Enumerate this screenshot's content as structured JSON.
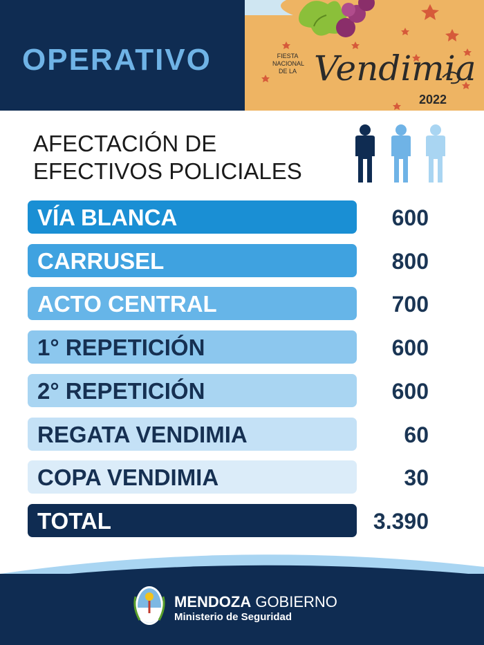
{
  "header": {
    "title": "OPERATIVO",
    "logo": {
      "fiesta_lines": [
        "FIESTA",
        "NACIONAL",
        "DE LA"
      ],
      "word": "Vendimia",
      "year": "2022"
    }
  },
  "subtitle": {
    "line1": "AFECTACIÓN DE",
    "line2": "EFECTIVOS POLICIALES"
  },
  "people_icons": [
    "person-icon-dark",
    "person-icon-medium",
    "person-icon-light"
  ],
  "rows": [
    {
      "label": "VÍA BLANCA",
      "value": "600",
      "bg": "#1a8fd4",
      "text_color": "#ffffff"
    },
    {
      "label": "CARRUSEL",
      "value": "800",
      "bg": "#3fa2e0",
      "text_color": "#ffffff"
    },
    {
      "label": "ACTO CENTRAL",
      "value": "700",
      "bg": "#66b5e8",
      "text_color": "#ffffff"
    },
    {
      "label": "1° REPETICIÓN",
      "value": "600",
      "bg": "#8cc7ee",
      "text_color": "#163052"
    },
    {
      "label": "2° REPETICIÓN",
      "value": "600",
      "bg": "#a9d5f2",
      "text_color": "#163052"
    },
    {
      "label": "REGATA VENDIMIA",
      "value": "60",
      "bg": "#c4e1f6",
      "text_color": "#163052"
    },
    {
      "label": "COPA VENDIMIA",
      "value": "30",
      "bg": "#dbecf9",
      "text_color": "#163052"
    }
  ],
  "total": {
    "label": "TOTAL",
    "value": "3.390",
    "bg": "#0f2c52",
    "text_color": "#ffffff"
  },
  "footer": {
    "org_bold": "MENDOZA",
    "org_rest": " GOBIERNO",
    "ministry": "Ministerio de Seguridad"
  },
  "colors": {
    "navy": "#0f2c52",
    "title_blue": "#6fb3e6",
    "logo_bg": "#eeb463",
    "wave_light": "#a9d5f2"
  }
}
